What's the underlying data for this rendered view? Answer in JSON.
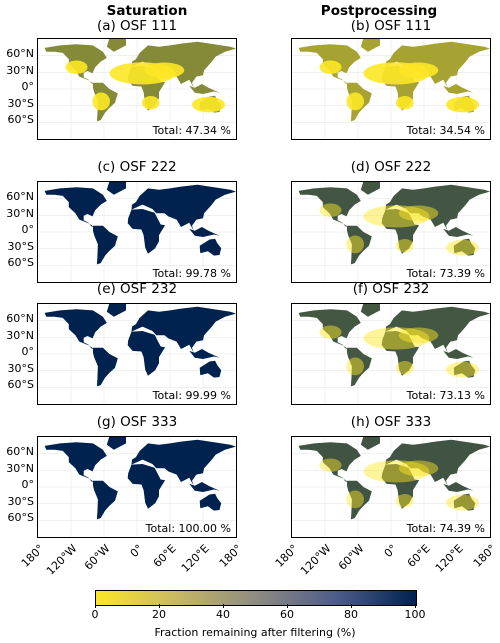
{
  "columns": [
    "Saturation",
    "Postprocessing"
  ],
  "panels": [
    {
      "title": "(a) OSF 111",
      "total": "Total: 47.34 %",
      "fraction": 47.34
    },
    {
      "title": "(b) OSF 111",
      "total": "Total: 34.54 %",
      "fraction": 34.54
    },
    {
      "title": "(c) OSF 222",
      "total": "Total: 99.78 %",
      "fraction": 99.78
    },
    {
      "title": "(d) OSF 222",
      "total": "Total: 73.39 %",
      "fraction": 73.39
    },
    {
      "title": "(e) OSF 232",
      "total": "Total: 99.99 %",
      "fraction": 99.99
    },
    {
      "title": "(f) OSF 232",
      "total": "Total: 73.13 %",
      "fraction": 73.13
    },
    {
      "title": "(g) OSF 333",
      "total": "Total: 100.00 %",
      "fraction": 100.0
    },
    {
      "title": "(h) OSF 333",
      "total": "Total: 74.39 %",
      "fraction": 74.39
    }
  ],
  "lat_labels": [
    "60°N",
    "30°N",
    "0°",
    "30°S",
    "60°S"
  ],
  "lon_labels": [
    "180°",
    "120°W",
    "60°W",
    "0°",
    "60°E",
    "120°E",
    "180°"
  ],
  "colorbar": {
    "ticks": [
      "0",
      "20",
      "40",
      "60",
      "80",
      "100"
    ],
    "label": "Fraction remaining after filtering (%)",
    "colors": [
      "#fde725",
      "#8e8c82",
      "#00224e"
    ]
  }
}
